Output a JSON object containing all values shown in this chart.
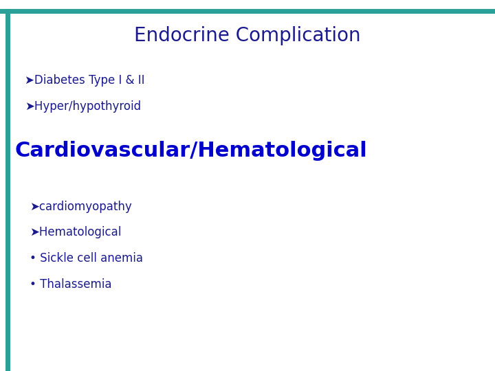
{
  "background_color": "#ffffff",
  "top_bar_color": "#2aa198",
  "left_bar_color": "#2aa198",
  "title": "Endocrine Complication",
  "title_color": "#1a1a8c",
  "title_fontsize": 20,
  "bullet1_text": "➤Diabetes Type I & II",
  "bullet2_text": "➤Hyper/hypothyroid",
  "section2_title": "Cardiovascular/Hematological",
  "section2_color": "#0000cc",
  "section2_fontsize": 22,
  "sub1": "➤cardiomyopathy",
  "sub2": "➤Hematological",
  "sub3": "• Sickle cell anemia",
  "sub4": "• Thalassemia",
  "dark_blue": "#1a1a8c",
  "body_fontsize": 12,
  "sub_fontsize": 12
}
